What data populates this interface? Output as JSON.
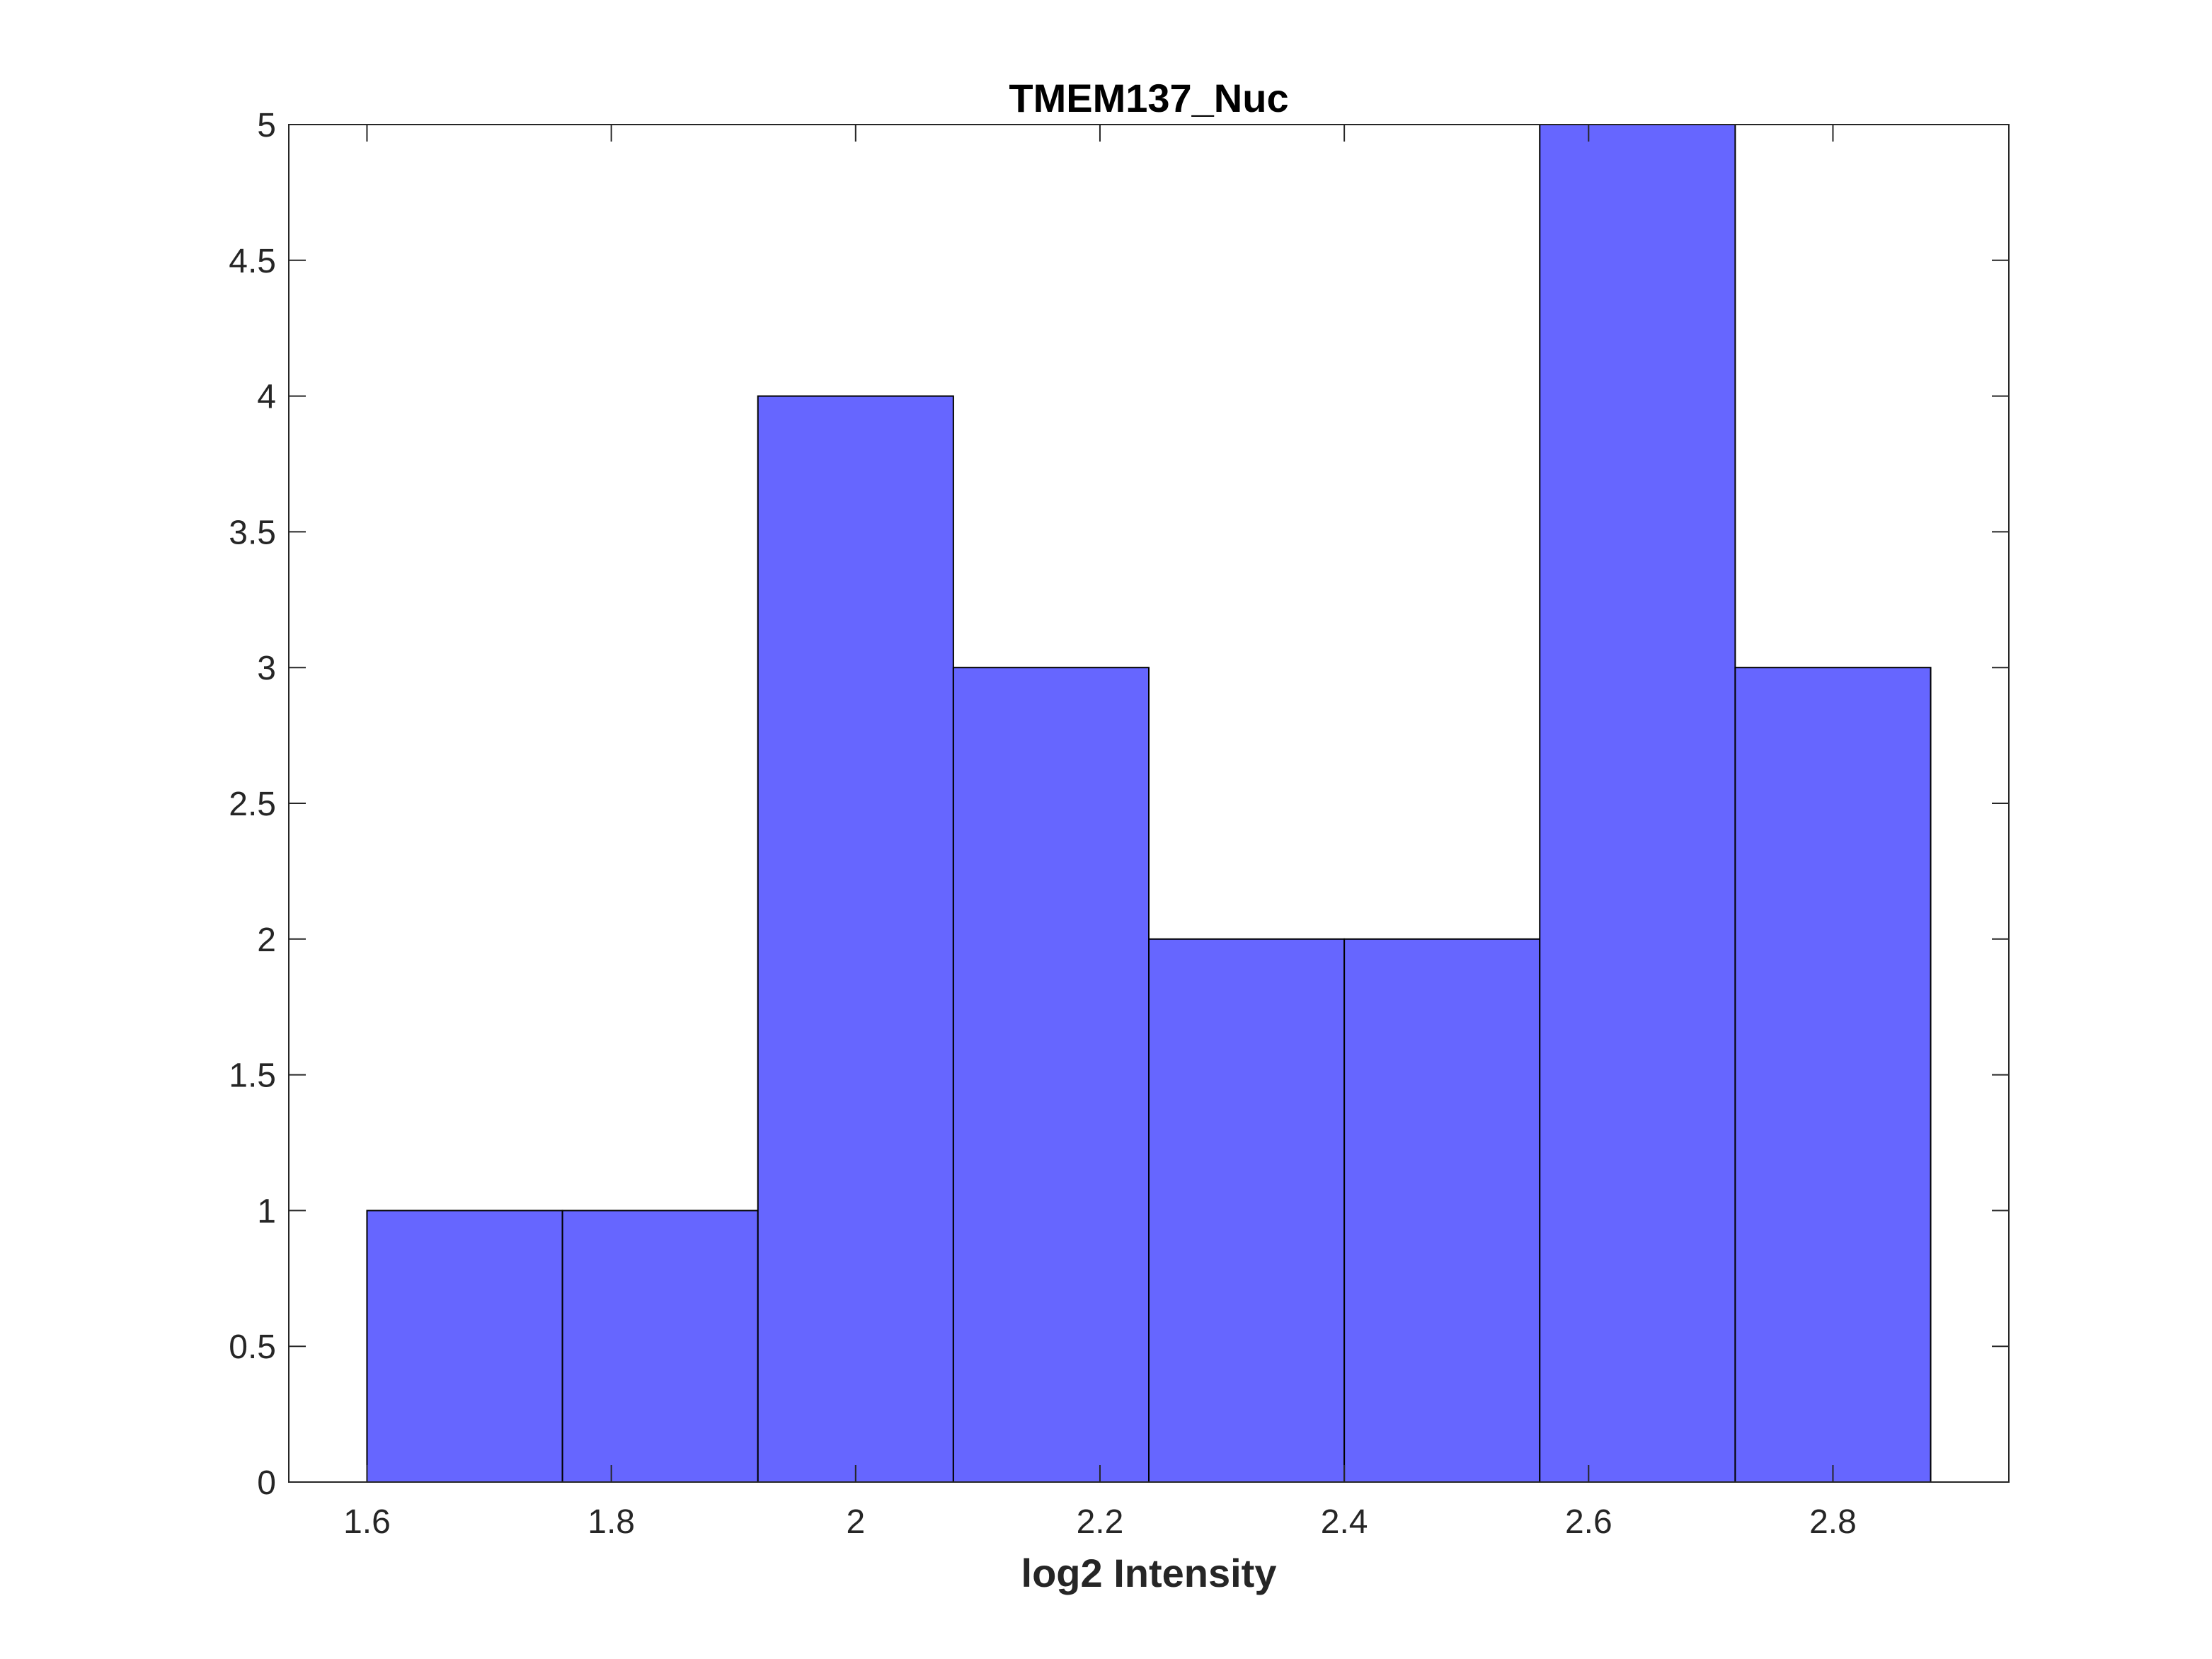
{
  "chart_data": {
    "type": "bar",
    "title": "TMEM137_Nuc",
    "xlabel": "log2 Intensity",
    "ylabel": "",
    "bin_edges": [
      1.6,
      1.76,
      1.92,
      2.08,
      2.24,
      2.4,
      2.56,
      2.72,
      2.88
    ],
    "values": [
      1,
      1,
      4,
      3,
      2,
      2,
      5,
      3
    ],
    "xlim": [
      1.536,
      2.944
    ],
    "ylim": [
      0,
      5
    ],
    "x_ticks": [
      1.6,
      1.8,
      2.0,
      2.2,
      2.4,
      2.6,
      2.8
    ],
    "x_tick_labels": [
      "1.6",
      "1.8",
      "2",
      "2.2",
      "2.4",
      "2.6",
      "2.8"
    ],
    "y_ticks": [
      0,
      0.5,
      1,
      1.5,
      2,
      2.5,
      3,
      3.5,
      4,
      4.5,
      5
    ],
    "y_tick_labels": [
      "0",
      "0.5",
      "1",
      "1.5",
      "2",
      "2.5",
      "3",
      "3.5",
      "4",
      "4.5",
      "5"
    ],
    "bar_color": "#6666ff",
    "bar_edge_color": "#000000",
    "axis_color": "#262626",
    "grid": false,
    "legend": "none"
  }
}
